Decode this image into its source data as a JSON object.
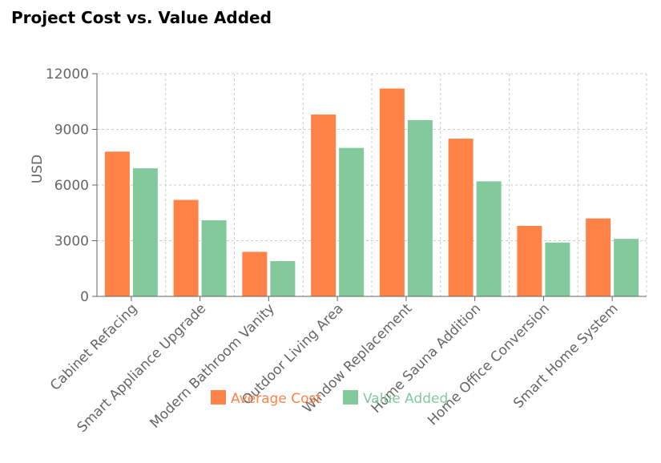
{
  "chart_data": {
    "type": "bar",
    "title": "Project Cost vs. Value Added",
    "ylabel": "USD",
    "xlabel": "",
    "ylim": [
      0,
      12000
    ],
    "yticks": [
      0,
      3000,
      6000,
      9000,
      12000
    ],
    "grid": true,
    "legend": "bottom",
    "categories": [
      "Cabinet Refacing",
      "Smart Appliance Upgrade",
      "Modern Bathroom Vanity",
      "Outdoor Living Area",
      "Window Replacement",
      "Home Sauna Addition",
      "Home Office Conversion",
      "Smart Home System"
    ],
    "series": [
      {
        "name": "Average Cost",
        "color": "#ff8347",
        "values": [
          7800,
          5200,
          2400,
          9800,
          11200,
          8500,
          3800,
          4200
        ]
      },
      {
        "name": "Value Added",
        "color": "#82c99c",
        "values": [
          6900,
          4100,
          1900,
          8000,
          9500,
          6200,
          2900,
          3100
        ]
      }
    ]
  }
}
